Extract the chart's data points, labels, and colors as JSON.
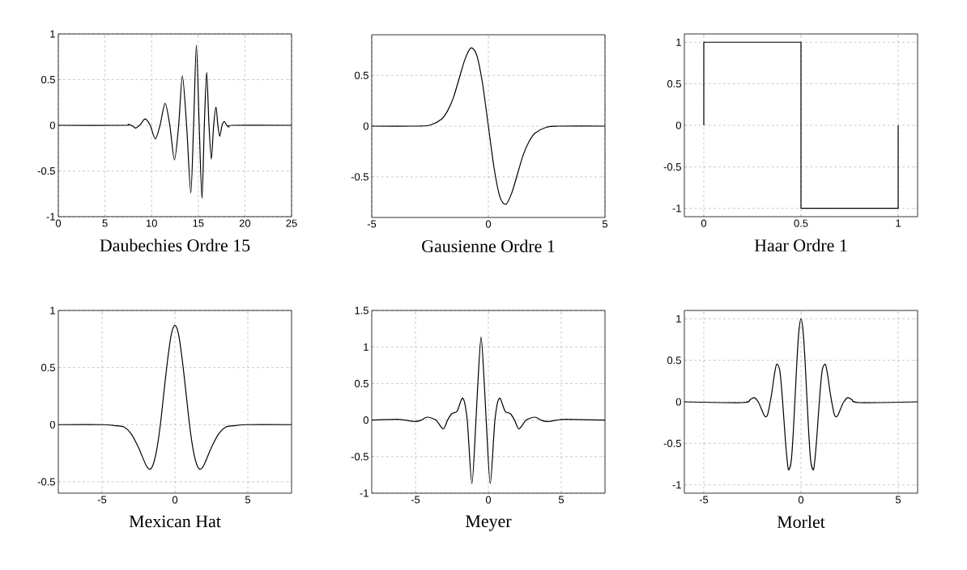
{
  "chart_data": [
    {
      "type": "line",
      "title": "Daubechies Ordre 15",
      "color": "#000000",
      "grid": true,
      "xlim": [
        0,
        25
      ],
      "ylim": [
        -1,
        1
      ],
      "xticks": [
        0,
        5,
        10,
        15,
        20,
        25
      ],
      "yticks": [
        -1,
        -0.5,
        0,
        0.5,
        1
      ],
      "x": [
        0,
        7,
        7.5,
        8,
        8.3,
        8.8,
        9.3,
        9.85,
        10.4,
        10.9,
        11.45,
        11.95,
        12.45,
        12.9,
        13.3,
        13.75,
        14.2,
        14.5,
        14.8,
        15.1,
        15.4,
        15.65,
        15.9,
        16.15,
        16.4,
        16.65,
        16.9,
        17.1,
        17.3,
        17.55,
        17.8,
        18.05,
        18.3,
        18.7,
        25
      ],
      "values": [
        0,
        0,
        0.01,
        -0.01,
        -0.03,
        0.01,
        0.07,
        0,
        -0.15,
        0,
        0.24,
        0,
        -0.38,
        0,
        0.54,
        0,
        -0.74,
        0,
        0.88,
        0,
        -0.8,
        0,
        0.58,
        0,
        -0.37,
        0,
        0.2,
        0,
        -0.12,
        0,
        0.04,
        0,
        -0.02,
        0,
        0
      ]
    },
    {
      "type": "line",
      "title": "Gausienne Ordre 1",
      "color": "#000000",
      "grid": true,
      "xlim": [
        -5,
        5
      ],
      "ylim": [
        -0.9,
        0.9
      ],
      "xticks": [
        -5,
        0,
        5
      ],
      "yticks": [
        -0.5,
        0,
        0.5
      ],
      "x": [
        -5,
        -3,
        -2.5,
        -2,
        -1.75,
        -1.5,
        -1.25,
        -1,
        -0.75,
        -0.5,
        -0.25,
        0,
        0.25,
        0.5,
        0.75,
        1,
        1.25,
        1.5,
        1.75,
        2,
        2.5,
        3,
        5
      ],
      "values": [
        0,
        0,
        0.01,
        0.07,
        0.15,
        0.28,
        0.47,
        0.66,
        0.77,
        0.7,
        0.42,
        0,
        -0.42,
        -0.7,
        -0.77,
        -0.66,
        -0.47,
        -0.28,
        -0.15,
        -0.07,
        -0.01,
        0,
        0
      ]
    },
    {
      "type": "step",
      "title": "Haar Ordre 1",
      "color": "#000000",
      "grid": true,
      "xlim": [
        -0.1,
        1.1
      ],
      "ylim": [
        -1.1,
        1.1
      ],
      "xticks": [
        0,
        0.5,
        1
      ],
      "yticks": [
        -1,
        -0.5,
        0,
        0.5,
        1
      ],
      "x": [
        0,
        0,
        0.5,
        1,
        1
      ],
      "values": [
        0,
        1,
        -1,
        -1,
        0
      ]
    },
    {
      "type": "line",
      "title": "Mexican Hat",
      "color": "#000000",
      "grid": true,
      "xlim": [
        -8,
        8
      ],
      "ylim": [
        -0.6,
        1
      ],
      "xticks": [
        -5,
        0,
        5
      ],
      "yticks": [
        -0.5,
        0,
        0.5,
        1
      ],
      "x": [
        -8,
        -5,
        -4,
        -3.5,
        -3,
        -2.5,
        -2,
        -1.73,
        -1.5,
        -1.25,
        -1,
        -0.75,
        -0.5,
        -0.25,
        0,
        0.25,
        0.5,
        0.75,
        1,
        1.25,
        1.5,
        1.73,
        2,
        2.5,
        3,
        3.5,
        4,
        5,
        8
      ],
      "values": [
        0,
        0,
        -0.01,
        -0.02,
        -0.08,
        -0.2,
        -0.35,
        -0.39,
        -0.35,
        -0.22,
        0,
        0.29,
        0.57,
        0.79,
        0.87,
        0.79,
        0.57,
        0.29,
        0,
        -0.22,
        -0.35,
        -0.39,
        -0.35,
        -0.2,
        -0.08,
        -0.02,
        -0.01,
        0,
        0
      ]
    },
    {
      "type": "line",
      "title": "Meyer",
      "color": "#000000",
      "grid": true,
      "xlim": [
        -8,
        8
      ],
      "ylim": [
        -1,
        1.5
      ],
      "xticks": [
        -5,
        0,
        5
      ],
      "yticks": [
        -1,
        -0.5,
        0,
        0.5,
        1,
        1.5
      ],
      "x": [
        -8,
        -6.3,
        -5.7,
        -5.05,
        -4.6,
        -4.2,
        -3.6,
        -3.1,
        -2.8,
        -2.5,
        -2.15,
        -1.75,
        -1.45,
        -1.13,
        -0.85,
        -0.72,
        -0.5,
        -0.28,
        -0.15,
        0.13,
        0.45,
        0.75,
        1.15,
        1.5,
        1.8,
        2.1,
        2.6,
        3.2,
        3.6,
        4.05,
        4.7,
        5.3,
        8
      ],
      "values": [
        0,
        0.01,
        0,
        -0.02,
        0,
        0.04,
        0,
        -0.12,
        0,
        0.09,
        0.12,
        0.3,
        0,
        -0.87,
        0,
        0.5,
        1.14,
        0.5,
        0,
        -0.87,
        0,
        0.3,
        0.12,
        0.09,
        0,
        -0.12,
        0,
        0.04,
        0,
        -0.02,
        0,
        0.01,
        0
      ]
    },
    {
      "type": "line",
      "title": "Morlet",
      "color": "#000000",
      "grid": true,
      "xlim": [
        -6,
        6
      ],
      "ylim": [
        -1.1,
        1.1
      ],
      "xticks": [
        -5,
        0,
        5
      ],
      "yticks": [
        -1,
        -0.5,
        0,
        0.5,
        1
      ],
      "x": [
        -6,
        -3,
        -2.6,
        -2.4,
        -2.2,
        -2.1,
        -1.9,
        -1.8,
        -1.7,
        -1.5,
        -1.4,
        -1.26,
        -1.1,
        -1,
        -0.9,
        -0.8,
        -0.7,
        -0.63,
        -0.5,
        -0.4,
        -0.3,
        -0.2,
        -0.1,
        0,
        0.1,
        0.2,
        0.3,
        0.4,
        0.5,
        0.63,
        0.7,
        0.8,
        0.9,
        1,
        1.1,
        1.26,
        1.4,
        1.5,
        1.7,
        1.8,
        1.9,
        2.1,
        2.2,
        2.4,
        2.6,
        3,
        6
      ],
      "values": [
        0,
        -0.01,
        0.03,
        0.05,
        0,
        -0.05,
        -0.16,
        -0.18,
        -0.14,
        0.11,
        0.28,
        0.45,
        0.39,
        0.17,
        -0.14,
        -0.47,
        -0.73,
        -0.82,
        -0.71,
        -0.38,
        0.07,
        0.53,
        0.87,
        1,
        0.87,
        0.53,
        0.07,
        -0.38,
        -0.71,
        -0.82,
        -0.73,
        -0.47,
        -0.14,
        0.17,
        0.39,
        0.45,
        0.28,
        0.11,
        -0.14,
        -0.18,
        -0.16,
        -0.05,
        0,
        0.05,
        0.03,
        -0.01,
        0
      ]
    }
  ]
}
